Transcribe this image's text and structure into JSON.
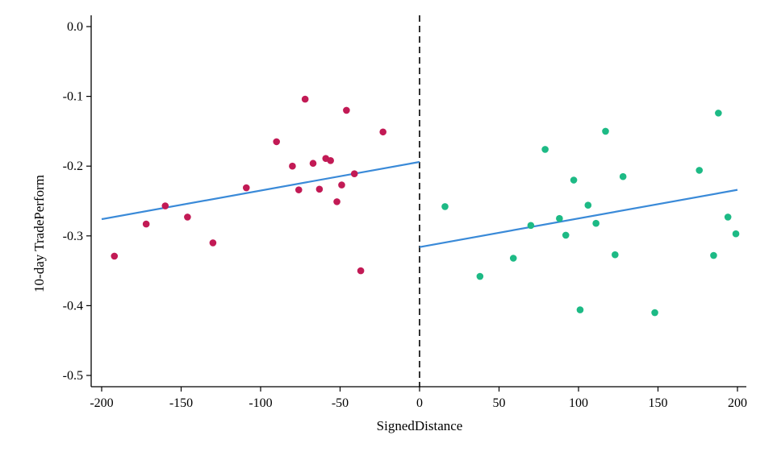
{
  "chart_data": {
    "type": "scatter",
    "xlabel": "SignedDistance",
    "ylabel": "10-day TradePerform",
    "xlim": [
      -200,
      200
    ],
    "ylim": [
      -0.5,
      0.0
    ],
    "xticks": [
      -200,
      -150,
      -100,
      -50,
      0,
      50,
      100,
      150,
      200
    ],
    "yticks": [
      0.0,
      -0.1,
      -0.2,
      -0.3,
      -0.4,
      -0.5
    ],
    "ytick_labels": [
      "0.0",
      "-0.1",
      "-0.2",
      "-0.3",
      "-0.4",
      "-0.5"
    ],
    "cutoff_line": {
      "x": 0,
      "style": "dashed",
      "color": "#000000"
    },
    "fit_color": "#3a8ad8",
    "series": [
      {
        "side": "left",
        "color": "#c21a55",
        "points": [
          [
            -192,
            -0.329
          ],
          [
            -172,
            -0.283
          ],
          [
            -160,
            -0.257
          ],
          [
            -146,
            -0.273
          ],
          [
            -130,
            -0.31
          ],
          [
            -109,
            -0.231
          ],
          [
            -90,
            -0.165
          ],
          [
            -80,
            -0.2
          ],
          [
            -76,
            -0.234
          ],
          [
            -72,
            -0.104
          ],
          [
            -67,
            -0.196
          ],
          [
            -63,
            -0.233
          ],
          [
            -59,
            -0.189
          ],
          [
            -56,
            -0.192
          ],
          [
            -52,
            -0.251
          ],
          [
            -49,
            -0.227
          ],
          [
            -46,
            -0.12
          ],
          [
            -41,
            -0.211
          ],
          [
            -37,
            -0.35
          ],
          [
            -23,
            -0.151
          ]
        ],
        "fit": {
          "x": [
            -200,
            0
          ],
          "y": [
            -0.276,
            -0.194
          ]
        }
      },
      {
        "side": "right",
        "color": "#1dba85",
        "points": [
          [
            16,
            -0.258
          ],
          [
            38,
            -0.358
          ],
          [
            59,
            -0.332
          ],
          [
            70,
            -0.285
          ],
          [
            79,
            -0.176
          ],
          [
            88,
            -0.275
          ],
          [
            92,
            -0.299
          ],
          [
            97,
            -0.22
          ],
          [
            101,
            -0.406
          ],
          [
            106,
            -0.256
          ],
          [
            111,
            -0.282
          ],
          [
            117,
            -0.15
          ],
          [
            123,
            -0.327
          ],
          [
            128,
            -0.215
          ],
          [
            148,
            -0.41
          ],
          [
            176,
            -0.206
          ],
          [
            185,
            -0.328
          ],
          [
            188,
            -0.124
          ],
          [
            194,
            -0.273
          ],
          [
            199,
            -0.297
          ]
        ],
        "fit": {
          "x": [
            0,
            200
          ],
          "y": [
            -0.316,
            -0.234
          ]
        }
      }
    ]
  }
}
